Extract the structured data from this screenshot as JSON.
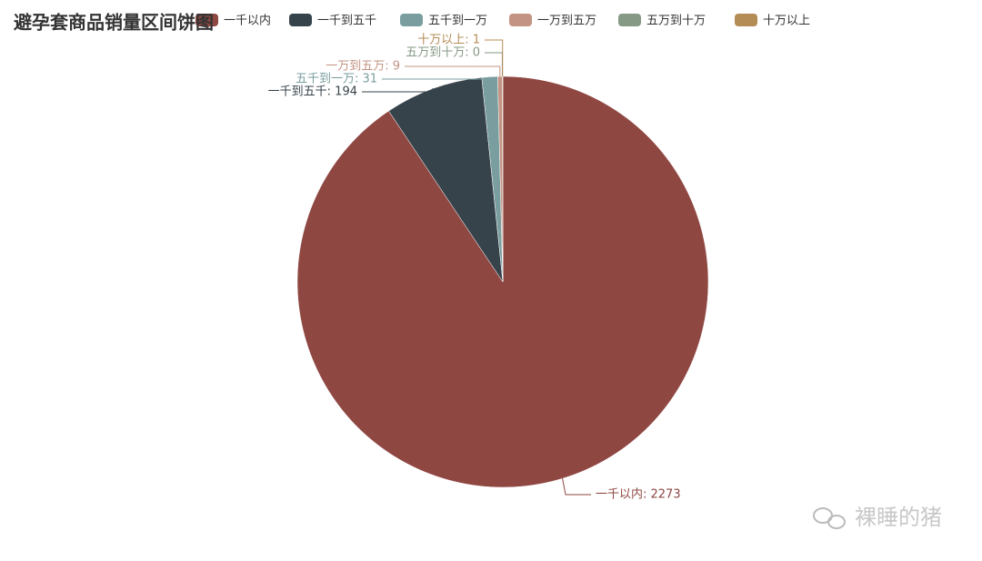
{
  "chart_data": {
    "type": "pie",
    "title": "避孕套商品销量区间饼图",
    "categories": [
      "一千以内",
      "一千到五千",
      "五千到一万",
      "一万到五万",
      "五万到十万",
      "十万以上"
    ],
    "values": [
      2273,
      194,
      31,
      9,
      0,
      1
    ],
    "value_labels": [
      "一千以内: 2273",
      "一千到五千: 194",
      "五千到一万: 31",
      "一万到五万: 9",
      "五万到十万: 0",
      "十万以上: 1"
    ],
    "colors": [
      "#8f4742",
      "#37434b",
      "#7a9e9f",
      "#c39483",
      "#869984",
      "#b48c56"
    ],
    "legend": "top",
    "watermark": "裸睡的猪"
  }
}
